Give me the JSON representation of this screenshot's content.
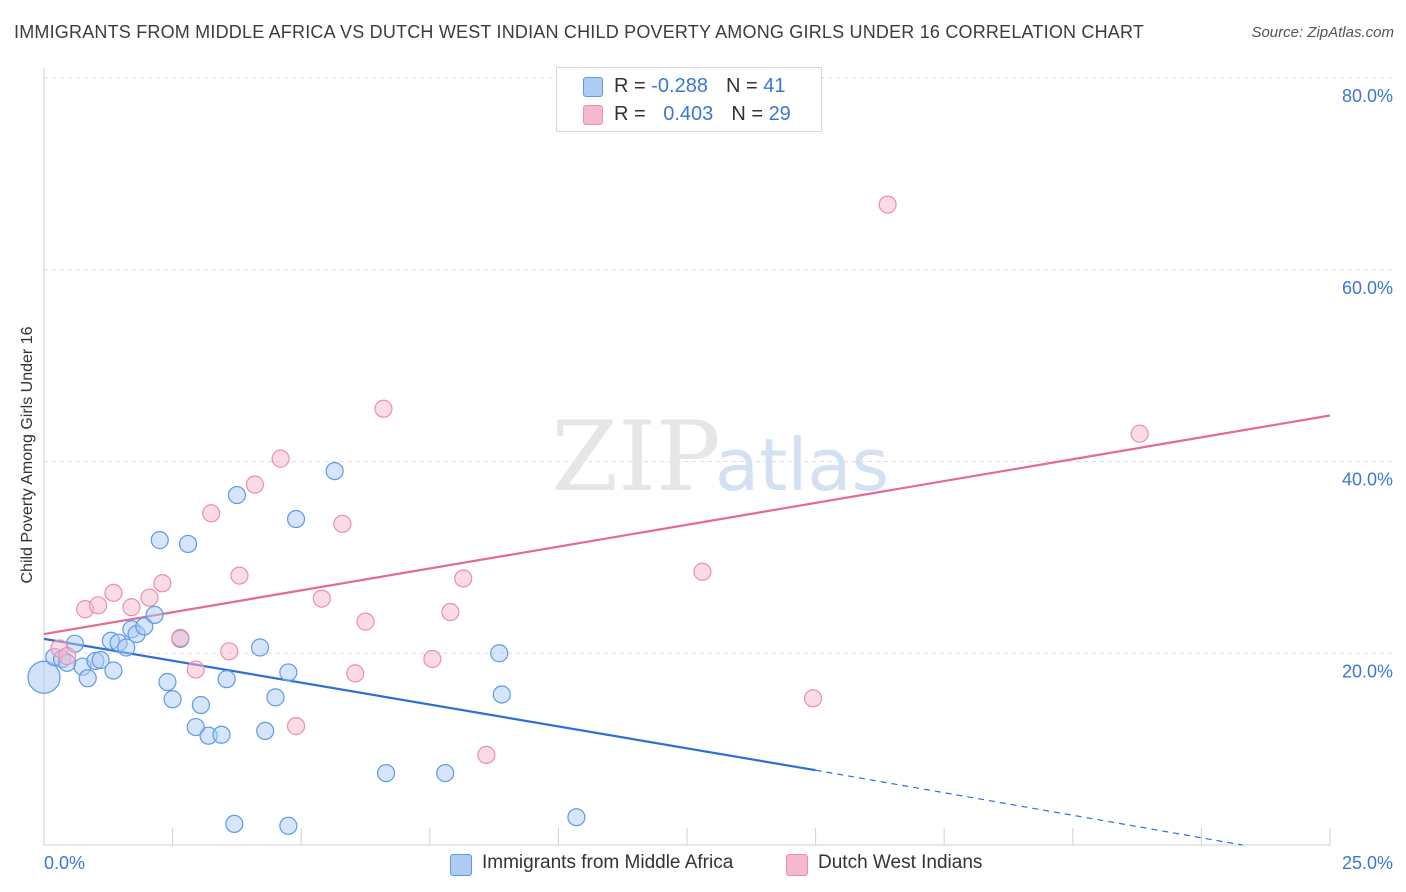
{
  "title": "IMMIGRANTS FROM MIDDLE AFRICA VS DUTCH WEST INDIAN CHILD POVERTY AMONG GIRLS UNDER 16 CORRELATION CHART",
  "source": "Source: ZipAtlas.com",
  "watermark": {
    "zip": "ZIP",
    "atlas": "atlas"
  },
  "stats": [
    {
      "r_label": "R = ",
      "r_value": "-0.288",
      "n_label": "N = ",
      "n_value": "41",
      "color": "#aecbf3"
    },
    {
      "r_label": "R = ",
      "r_value": "0.403",
      "n_label": "N = ",
      "n_value": "29",
      "color": "#f7b8cb"
    }
  ],
  "legend": [
    {
      "label": "Immigrants from Middle Africa",
      "color": "#aecbf3"
    },
    {
      "label": "Dutch West Indians",
      "color": "#f7b8cb"
    }
  ],
  "chart_data": {
    "type": "scatter",
    "ylabel": "Child Poverty Among Girls Under 16",
    "xlim": [
      0,
      25
    ],
    "ylim": [
      0,
      80
    ],
    "x_tick_labels": [
      "0.0%",
      "25.0%"
    ],
    "y_ticks": [
      20,
      40,
      60,
      80
    ],
    "y_tick_labels": [
      "20.0%",
      "40.0%",
      "60.0%",
      "80.0%"
    ],
    "grid": true,
    "series": [
      {
        "name": "Immigrants from Middle Africa",
        "color": "#5b9be6",
        "fill": "#aecbf3",
        "line_color": "#2e6fd1",
        "points": [
          [
            0.0,
            17.5
          ],
          [
            0.2,
            19.6
          ],
          [
            0.35,
            19.4
          ],
          [
            0.45,
            19.0
          ],
          [
            0.6,
            21.0
          ],
          [
            0.75,
            18.6
          ],
          [
            0.85,
            17.4
          ],
          [
            1.0,
            19.2
          ],
          [
            1.1,
            19.3
          ],
          [
            1.3,
            21.3
          ],
          [
            1.35,
            18.2
          ],
          [
            1.45,
            21.1
          ],
          [
            1.6,
            20.6
          ],
          [
            1.7,
            22.5
          ],
          [
            1.8,
            22.0
          ],
          [
            1.95,
            22.8
          ],
          [
            2.15,
            24.0
          ],
          [
            2.25,
            31.8
          ],
          [
            2.4,
            17.0
          ],
          [
            2.5,
            15.2
          ],
          [
            2.65,
            21.5
          ],
          [
            2.8,
            31.4
          ],
          [
            2.95,
            12.3
          ],
          [
            3.05,
            14.6
          ],
          [
            3.2,
            11.4
          ],
          [
            3.45,
            11.5
          ],
          [
            3.55,
            17.3
          ],
          [
            3.75,
            36.5
          ],
          [
            4.2,
            20.6
          ],
          [
            4.3,
            11.9
          ],
          [
            4.5,
            15.4
          ],
          [
            4.75,
            18.0
          ],
          [
            4.9,
            34.0
          ],
          [
            5.65,
            39.0
          ],
          [
            6.65,
            7.5
          ],
          [
            7.8,
            7.5
          ],
          [
            8.85,
            20.0
          ],
          [
            8.9,
            15.7
          ],
          [
            10.35,
            2.9
          ],
          [
            3.7,
            2.2
          ],
          [
            4.75,
            2.0
          ]
        ],
        "trend": {
          "x_start": 0,
          "y_start": 21.5,
          "x_solid_end": 15,
          "y_solid_end": 7.8,
          "x_dashed_end": 23.3,
          "y_dashed_end": 0
        }
      },
      {
        "name": "Dutch West Indians",
        "color": "#ee8eaa",
        "fill": "#f7b8cb",
        "line_color": "#e46a90",
        "points": [
          [
            0.3,
            20.5
          ],
          [
            0.45,
            19.7
          ],
          [
            0.8,
            24.6
          ],
          [
            1.05,
            25.0
          ],
          [
            1.35,
            26.3
          ],
          [
            1.7,
            24.8
          ],
          [
            2.05,
            25.8
          ],
          [
            2.3,
            27.3
          ],
          [
            2.65,
            21.6
          ],
          [
            2.95,
            18.3
          ],
          [
            3.25,
            34.6
          ],
          [
            3.6,
            20.2
          ],
          [
            3.8,
            28.1
          ],
          [
            4.1,
            37.6
          ],
          [
            4.6,
            40.3
          ],
          [
            4.9,
            12.4
          ],
          [
            5.4,
            25.7
          ],
          [
            5.8,
            33.5
          ],
          [
            6.05,
            17.9
          ],
          [
            6.25,
            23.3
          ],
          [
            6.6,
            45.5
          ],
          [
            7.55,
            19.4
          ],
          [
            7.9,
            24.3
          ],
          [
            8.15,
            27.8
          ],
          [
            8.6,
            9.4
          ],
          [
            12.8,
            28.5
          ],
          [
            14.95,
            15.3
          ],
          [
            16.4,
            66.8
          ],
          [
            21.3,
            42.9
          ]
        ],
        "trend": {
          "x_start": 0,
          "y_start": 22.0,
          "x_end": 25,
          "y_end": 44.8
        }
      }
    ]
  }
}
